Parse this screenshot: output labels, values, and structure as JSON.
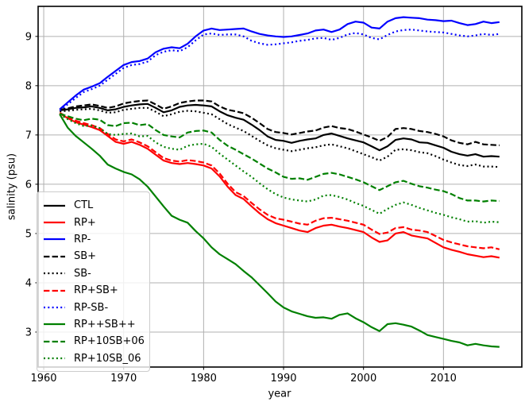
{
  "chart_data": {
    "type": "line",
    "title": "",
    "xlabel": "year",
    "ylabel": "salinity (psu)",
    "xlim": [
      1959.3,
      2019.8
    ],
    "ylim": [
      2.29,
      9.61
    ],
    "xticks": [
      1960,
      1970,
      1980,
      1990,
      2000,
      2010
    ],
    "yticks": [
      3,
      4,
      5,
      6,
      7,
      8,
      9
    ],
    "grid": true,
    "grid_color": "#b0b0b0",
    "frame_color": "#000000",
    "legend_position": "lower left",
    "x": [
      1962,
      1963,
      1964,
      1965,
      1966,
      1967,
      1968,
      1969,
      1970,
      1971,
      1972,
      1973,
      1974,
      1975,
      1976,
      1977,
      1978,
      1979,
      1980,
      1981,
      1982,
      1983,
      1984,
      1985,
      1986,
      1987,
      1988,
      1989,
      1990,
      1991,
      1992,
      1993,
      1994,
      1995,
      1996,
      1997,
      1998,
      1999,
      2000,
      2001,
      2002,
      2003,
      2004,
      2005,
      2006,
      2007,
      2008,
      2009,
      2010,
      2011,
      2012,
      2013,
      2014,
      2015,
      2016,
      2017
    ],
    "series": [
      {
        "name": "CTL",
        "color": "#000000",
        "style": "solid",
        "values": [
          7.5,
          7.52,
          7.55,
          7.56,
          7.58,
          7.55,
          7.5,
          7.52,
          7.57,
          7.6,
          7.62,
          7.63,
          7.55,
          7.46,
          7.5,
          7.57,
          7.6,
          7.61,
          7.6,
          7.58,
          7.48,
          7.4,
          7.35,
          7.31,
          7.21,
          7.1,
          6.97,
          6.9,
          6.88,
          6.84,
          6.88,
          6.91,
          6.93,
          7.0,
          7.03,
          6.98,
          6.93,
          6.89,
          6.85,
          6.77,
          6.69,
          6.77,
          6.9,
          6.93,
          6.91,
          6.85,
          6.84,
          6.79,
          6.74,
          6.66,
          6.61,
          6.58,
          6.61,
          6.56,
          6.57,
          6.56
        ]
      },
      {
        "name": "RP+",
        "color": "#ff0000",
        "style": "solid",
        "values": [
          7.44,
          7.34,
          7.26,
          7.21,
          7.16,
          7.1,
          6.98,
          6.86,
          6.82,
          6.86,
          6.8,
          6.72,
          6.6,
          6.48,
          6.43,
          6.41,
          6.43,
          6.41,
          6.38,
          6.32,
          6.16,
          5.95,
          5.78,
          5.7,
          5.55,
          5.41,
          5.29,
          5.21,
          5.16,
          5.11,
          5.06,
          5.03,
          5.11,
          5.16,
          5.18,
          5.14,
          5.11,
          5.07,
          5.03,
          4.92,
          4.83,
          4.86,
          5.0,
          5.03,
          4.96,
          4.93,
          4.9,
          4.81,
          4.72,
          4.67,
          4.63,
          4.58,
          4.55,
          4.52,
          4.54,
          4.51
        ]
      },
      {
        "name": "RP-",
        "color": "#0000ff",
        "style": "solid",
        "values": [
          7.52,
          7.66,
          7.8,
          7.92,
          7.98,
          8.05,
          8.18,
          8.3,
          8.42,
          8.48,
          8.5,
          8.55,
          8.68,
          8.75,
          8.78,
          8.76,
          8.85,
          9.0,
          9.12,
          9.16,
          9.13,
          9.14,
          9.15,
          9.16,
          9.1,
          9.05,
          9.02,
          9.0,
          8.99,
          9.0,
          9.03,
          9.06,
          9.12,
          9.14,
          9.09,
          9.14,
          9.25,
          9.3,
          9.28,
          9.18,
          9.16,
          9.3,
          9.37,
          9.39,
          9.38,
          9.37,
          9.34,
          9.33,
          9.31,
          9.32,
          9.27,
          9.23,
          9.25,
          9.3,
          9.27,
          9.29
        ]
      },
      {
        "name": "SB+",
        "color": "#000000",
        "style": "dashed",
        "values": [
          7.51,
          7.54,
          7.58,
          7.6,
          7.62,
          7.59,
          7.55,
          7.58,
          7.64,
          7.67,
          7.69,
          7.7,
          7.62,
          7.53,
          7.58,
          7.65,
          7.68,
          7.7,
          7.7,
          7.68,
          7.58,
          7.51,
          7.48,
          7.44,
          7.35,
          7.24,
          7.12,
          7.06,
          7.04,
          7.01,
          7.04,
          7.07,
          7.09,
          7.15,
          7.18,
          7.14,
          7.12,
          7.07,
          7.01,
          6.95,
          6.88,
          6.96,
          7.12,
          7.14,
          7.12,
          7.08,
          7.06,
          7.02,
          6.97,
          6.89,
          6.84,
          6.81,
          6.86,
          6.81,
          6.8,
          6.79
        ]
      },
      {
        "name": "SB-",
        "color": "#000000",
        "style": "dotted",
        "values": [
          7.48,
          7.49,
          7.51,
          7.52,
          7.53,
          7.5,
          7.45,
          7.46,
          7.51,
          7.53,
          7.55,
          7.55,
          7.47,
          7.38,
          7.42,
          7.47,
          7.49,
          7.48,
          7.45,
          7.42,
          7.32,
          7.22,
          7.15,
          7.08,
          6.98,
          6.88,
          6.79,
          6.73,
          6.7,
          6.67,
          6.7,
          6.73,
          6.75,
          6.79,
          6.81,
          6.77,
          6.73,
          6.67,
          6.61,
          6.55,
          6.48,
          6.56,
          6.7,
          6.71,
          6.69,
          6.65,
          6.63,
          6.57,
          6.5,
          6.44,
          6.39,
          6.37,
          6.4,
          6.36,
          6.36,
          6.35
        ]
      },
      {
        "name": "RP+SB+",
        "color": "#ff0000",
        "style": "dashed",
        "values": [
          7.45,
          7.36,
          7.29,
          7.24,
          7.2,
          7.14,
          7.02,
          6.91,
          6.87,
          6.91,
          6.85,
          6.77,
          6.65,
          6.53,
          6.48,
          6.46,
          6.49,
          6.47,
          6.44,
          6.38,
          6.22,
          6.01,
          5.84,
          5.76,
          5.62,
          5.49,
          5.38,
          5.31,
          5.28,
          5.24,
          5.2,
          5.18,
          5.26,
          5.31,
          5.32,
          5.29,
          5.26,
          5.22,
          5.18,
          5.08,
          4.99,
          5.02,
          5.11,
          5.13,
          5.08,
          5.06,
          5.03,
          4.95,
          4.87,
          4.82,
          4.78,
          4.74,
          4.72,
          4.7,
          4.72,
          4.68
        ]
      },
      {
        "name": "RP-SB-",
        "color": "#0000ff",
        "style": "dotted",
        "values": [
          7.5,
          7.62,
          7.75,
          7.87,
          7.93,
          8.0,
          8.12,
          8.24,
          8.36,
          8.42,
          8.44,
          8.49,
          8.62,
          8.69,
          8.72,
          8.7,
          8.78,
          8.92,
          9.04,
          9.06,
          9.03,
          9.04,
          9.04,
          9.0,
          8.91,
          8.86,
          8.83,
          8.84,
          8.86,
          8.88,
          8.91,
          8.93,
          8.96,
          8.97,
          8.93,
          8.97,
          9.04,
          9.07,
          9.04,
          8.97,
          8.94,
          9.03,
          9.1,
          9.13,
          9.14,
          9.12,
          9.1,
          9.09,
          9.08,
          9.05,
          9.02,
          9.0,
          9.02,
          9.05,
          9.03,
          9.05
        ]
      },
      {
        "name": "RP++SB++",
        "color": "#008000",
        "style": "solid",
        "values": [
          7.42,
          7.15,
          6.98,
          6.85,
          6.72,
          6.58,
          6.4,
          6.32,
          6.25,
          6.2,
          6.1,
          5.95,
          5.75,
          5.55,
          5.36,
          5.28,
          5.22,
          5.05,
          4.9,
          4.72,
          4.58,
          4.48,
          4.38,
          4.24,
          4.11,
          3.95,
          3.79,
          3.62,
          3.5,
          3.42,
          3.37,
          3.32,
          3.29,
          3.3,
          3.27,
          3.35,
          3.38,
          3.28,
          3.2,
          3.1,
          3.02,
          3.16,
          3.18,
          3.15,
          3.11,
          3.03,
          2.94,
          2.9,
          2.86,
          2.82,
          2.79,
          2.73,
          2.76,
          2.73,
          2.71,
          2.7
        ]
      },
      {
        "name": "RP+10SB+06",
        "color": "#008000",
        "style": "dashed",
        "values": [
          7.43,
          7.38,
          7.33,
          7.3,
          7.33,
          7.31,
          7.2,
          7.18,
          7.24,
          7.25,
          7.2,
          7.22,
          7.1,
          7.0,
          6.97,
          6.95,
          7.05,
          7.08,
          7.09,
          7.05,
          6.9,
          6.78,
          6.7,
          6.61,
          6.52,
          6.42,
          6.32,
          6.24,
          6.15,
          6.11,
          6.12,
          6.09,
          6.15,
          6.21,
          6.23,
          6.2,
          6.15,
          6.1,
          6.04,
          5.96,
          5.88,
          5.96,
          6.04,
          6.07,
          6.01,
          5.96,
          5.93,
          5.89,
          5.86,
          5.8,
          5.72,
          5.67,
          5.67,
          5.65,
          5.67,
          5.66
        ]
      },
      {
        "name": "RP+10SB_06",
        "color": "#008000",
        "style": "dotted",
        "values": [
          7.42,
          7.32,
          7.24,
          7.18,
          7.19,
          7.14,
          7.02,
          7.0,
          7.02,
          7.03,
          6.97,
          6.98,
          6.85,
          6.76,
          6.72,
          6.7,
          6.78,
          6.81,
          6.82,
          6.76,
          6.62,
          6.5,
          6.38,
          6.26,
          6.15,
          6.02,
          5.9,
          5.8,
          5.73,
          5.69,
          5.67,
          5.65,
          5.69,
          5.77,
          5.78,
          5.74,
          5.69,
          5.62,
          5.56,
          5.48,
          5.4,
          5.5,
          5.58,
          5.63,
          5.58,
          5.52,
          5.47,
          5.42,
          5.38,
          5.33,
          5.29,
          5.24,
          5.25,
          5.22,
          5.24,
          5.23
        ]
      }
    ]
  }
}
